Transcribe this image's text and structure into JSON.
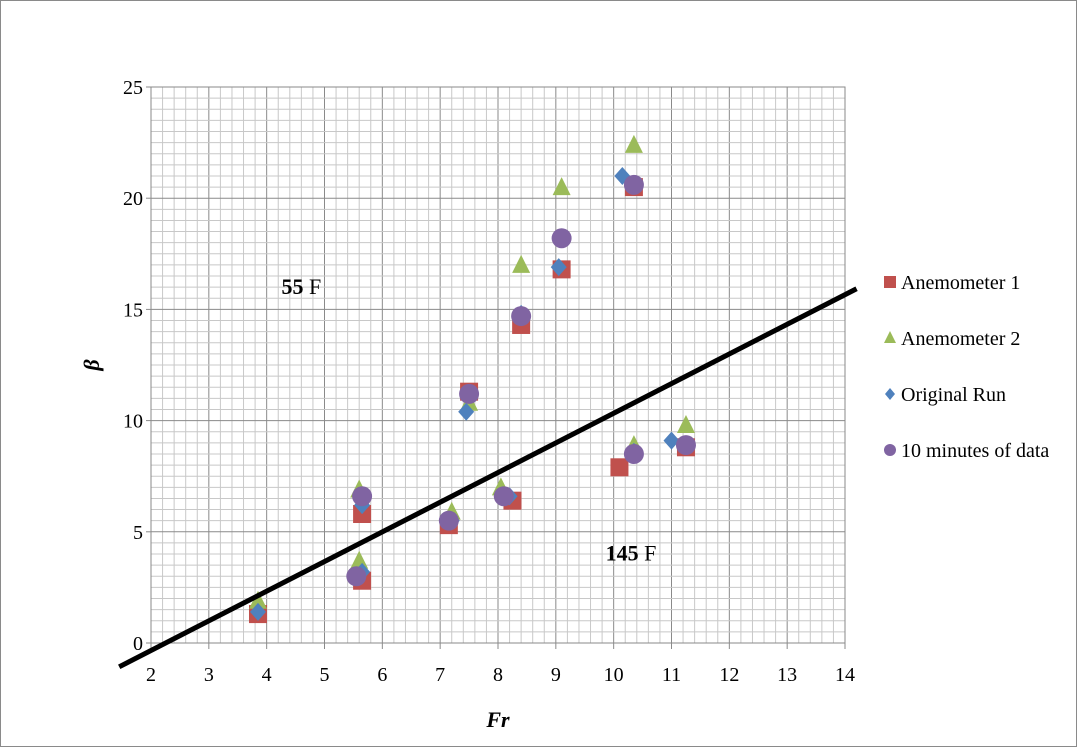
{
  "chart_data": {
    "type": "scatter",
    "title": "",
    "xlabel": "Fr",
    "ylabel": "β",
    "xlim": [
      2,
      14
    ],
    "ylim": [
      0,
      25
    ],
    "x_ticks": [
      2,
      3,
      4,
      5,
      6,
      7,
      8,
      9,
      10,
      11,
      12,
      13,
      14
    ],
    "y_ticks": [
      0,
      5,
      10,
      15,
      20,
      25
    ],
    "grid": "major and minor",
    "legend_position": "right",
    "series": [
      {
        "name": "Anemometer 1",
        "marker": "square",
        "color": "#c0504d",
        "points": [
          [
            3.85,
            1.3
          ],
          [
            5.65,
            2.8
          ],
          [
            5.65,
            5.8
          ],
          [
            7.15,
            5.3
          ],
          [
            7.5,
            11.3
          ],
          [
            8.25,
            6.4
          ],
          [
            8.4,
            14.3
          ],
          [
            9.1,
            16.8
          ],
          [
            10.1,
            7.9
          ],
          [
            10.35,
            20.5
          ],
          [
            11.25,
            8.8
          ]
        ]
      },
      {
        "name": "Anemometer 2",
        "marker": "triangle",
        "color": "#9bbb59",
        "points": [
          [
            3.85,
            1.9
          ],
          [
            5.6,
            3.7
          ],
          [
            5.6,
            6.9
          ],
          [
            7.2,
            5.9
          ],
          [
            7.5,
            10.8
          ],
          [
            8.05,
            7.0
          ],
          [
            8.4,
            17.0
          ],
          [
            9.1,
            20.5
          ],
          [
            10.35,
            8.9
          ],
          [
            10.35,
            22.4
          ],
          [
            11.25,
            9.8
          ]
        ]
      },
      {
        "name": "Original Run",
        "marker": "diamond",
        "color": "#4f81bd",
        "points": [
          [
            3.85,
            1.4
          ],
          [
            5.65,
            3.2
          ],
          [
            5.65,
            6.2
          ],
          [
            7.2,
            5.5
          ],
          [
            7.45,
            10.4
          ],
          [
            8.2,
            6.6
          ],
          [
            8.4,
            14.8
          ],
          [
            9.05,
            16.9
          ],
          [
            10.15,
            21.0
          ],
          [
            10.35,
            8.6
          ],
          [
            11.0,
            9.1
          ],
          [
            11.25,
            8.9
          ]
        ]
      },
      {
        "name": "10 minutes of data",
        "marker": "circle",
        "color": "#8064a2",
        "points": [
          [
            5.55,
            3.0
          ],
          [
            5.65,
            6.6
          ],
          [
            7.15,
            5.5
          ],
          [
            7.5,
            11.2
          ],
          [
            8.1,
            6.6
          ],
          [
            8.4,
            14.7
          ],
          [
            9.1,
            18.2
          ],
          [
            10.35,
            8.5
          ],
          [
            10.35,
            20.6
          ],
          [
            11.25,
            8.9
          ]
        ]
      }
    ],
    "threshold_line": {
      "from": [
        1.45,
        -1.07
      ],
      "to": [
        14.2,
        15.93
      ],
      "color": "#000000"
    },
    "annotations": [
      {
        "bold": "55",
        "text": " F",
        "x": 4.6,
        "y": 15.7
      },
      {
        "bold": "145",
        "text": " F",
        "x": 10.3,
        "y": 3.7
      }
    ]
  }
}
